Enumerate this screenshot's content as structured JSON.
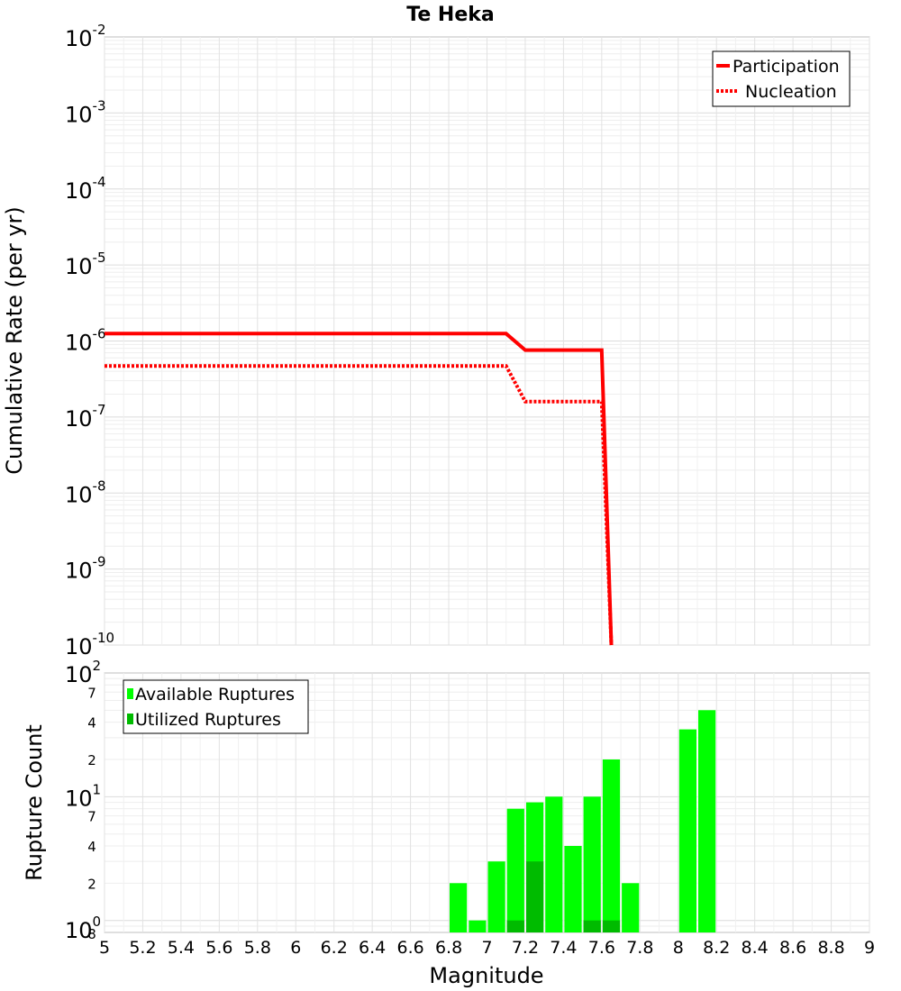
{
  "chart_data": [
    {
      "type": "line",
      "title": "Te Heka",
      "ylabel": "Cumulative Rate (per yr)",
      "xlim": [
        5,
        9
      ],
      "ylim": [
        1e-10,
        0.01
      ],
      "yscale": "log",
      "grid": true,
      "legend_position": "top-right",
      "y_ticks": [
        {
          "base": "10",
          "exp": "-2"
        },
        {
          "base": "10",
          "exp": "-3"
        },
        {
          "base": "10",
          "exp": "-4"
        },
        {
          "base": "10",
          "exp": "-5"
        },
        {
          "base": "10",
          "exp": "-6"
        },
        {
          "base": "10",
          "exp": "-7"
        },
        {
          "base": "10",
          "exp": "-8"
        },
        {
          "base": "10",
          "exp": "-9"
        },
        {
          "base": "10",
          "exp": "-10"
        }
      ],
      "series": [
        {
          "name": "Participation",
          "color": "#ff0000",
          "style": "solid",
          "x": [
            5.0,
            7.1,
            7.2,
            7.6,
            7.65
          ],
          "y": [
            1.25e-06,
            1.25e-06,
            7.6e-07,
            7.6e-07,
            1e-10
          ]
        },
        {
          "name": "Nucleation",
          "color": "#ff0000",
          "style": "dotted",
          "x": [
            5.0,
            7.1,
            7.2,
            7.6,
            7.65
          ],
          "y": [
            4.7e-07,
            4.7e-07,
            1.6e-07,
            1.6e-07,
            1e-10
          ]
        }
      ]
    },
    {
      "type": "bar",
      "xlabel": "Magnitude",
      "ylabel": "Rupture Count",
      "xlim": [
        5,
        9
      ],
      "ylim": [
        0.8,
        100
      ],
      "yscale": "log",
      "grid": true,
      "legend_position": "top-left",
      "x_ticks": [
        "5",
        "5.2",
        "5.4",
        "5.6",
        "5.8",
        "6",
        "6.2",
        "6.4",
        "6.6",
        "6.8",
        "7",
        "7.2",
        "7.4",
        "7.6",
        "7.8",
        "8",
        "8.2",
        "8.4",
        "8.6",
        "8.8",
        "9"
      ],
      "y_major_ticks": [
        {
          "base": "10",
          "exp": "2",
          "value": 100
        },
        {
          "base": "10",
          "exp": "1",
          "value": 10
        },
        {
          "base": "10",
          "exp": "0",
          "value": 1
        }
      ],
      "y_minor_ticks": [
        {
          "label": "7",
          "value": 70
        },
        {
          "label": "4",
          "value": 40
        },
        {
          "label": "2",
          "value": 20
        },
        {
          "label": "7",
          "value": 7
        },
        {
          "label": "4",
          "value": 4
        },
        {
          "label": "2",
          "value": 2
        },
        {
          "label": "8",
          "value": 0.8
        }
      ],
      "series": [
        {
          "name": "Available Ruptures",
          "color": "#00ff00",
          "x": [
            6.85,
            6.95,
            7.05,
            7.15,
            7.25,
            7.35,
            7.45,
            7.55,
            7.65,
            7.75,
            8.05,
            8.15
          ],
          "y": [
            2,
            1,
            3,
            8,
            9,
            10,
            4,
            10,
            20,
            2,
            35,
            50
          ]
        },
        {
          "name": "Utilized Ruptures",
          "color": "#00bb00",
          "x": [
            7.15,
            7.25,
            7.55,
            7.65
          ],
          "y": [
            1,
            3,
            1,
            1
          ]
        }
      ]
    }
  ]
}
